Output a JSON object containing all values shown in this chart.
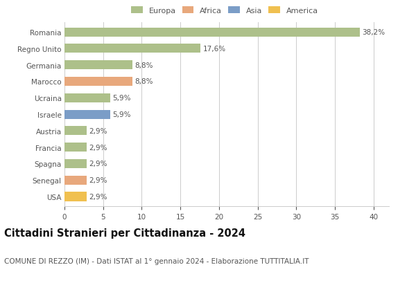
{
  "categories": [
    "Romania",
    "Regno Unito",
    "Germania",
    "Marocco",
    "Ucraina",
    "Israele",
    "Austria",
    "Francia",
    "Spagna",
    "Senegal",
    "USA"
  ],
  "values": [
    38.2,
    17.6,
    8.8,
    8.8,
    5.9,
    5.9,
    2.9,
    2.9,
    2.9,
    2.9,
    2.9
  ],
  "colors": [
    "#adc08a",
    "#adc08a",
    "#adc08a",
    "#e8a87c",
    "#adc08a",
    "#7b9dc7",
    "#adc08a",
    "#adc08a",
    "#adc08a",
    "#e8a87c",
    "#f0c050"
  ],
  "legend_labels": [
    "Europa",
    "Africa",
    "Asia",
    "America"
  ],
  "legend_colors": [
    "#adc08a",
    "#e8a87c",
    "#7b9dc7",
    "#f0c050"
  ],
  "xlim": [
    0,
    42
  ],
  "xticks": [
    0,
    5,
    10,
    15,
    20,
    25,
    30,
    35,
    40
  ],
  "title": "Cittadini Stranieri per Cittadinanza - 2024",
  "subtitle": "COMUNE DI REZZO (IM) - Dati ISTAT al 1° gennaio 2024 - Elaborazione TUTTITALIA.IT",
  "bar_height": 0.55,
  "background_color": "#ffffff",
  "grid_color": "#cccccc",
  "label_fontsize": 7.5,
  "ytick_fontsize": 7.5,
  "xtick_fontsize": 7.5,
  "title_fontsize": 10.5,
  "subtitle_fontsize": 7.5,
  "legend_fontsize": 8.0
}
